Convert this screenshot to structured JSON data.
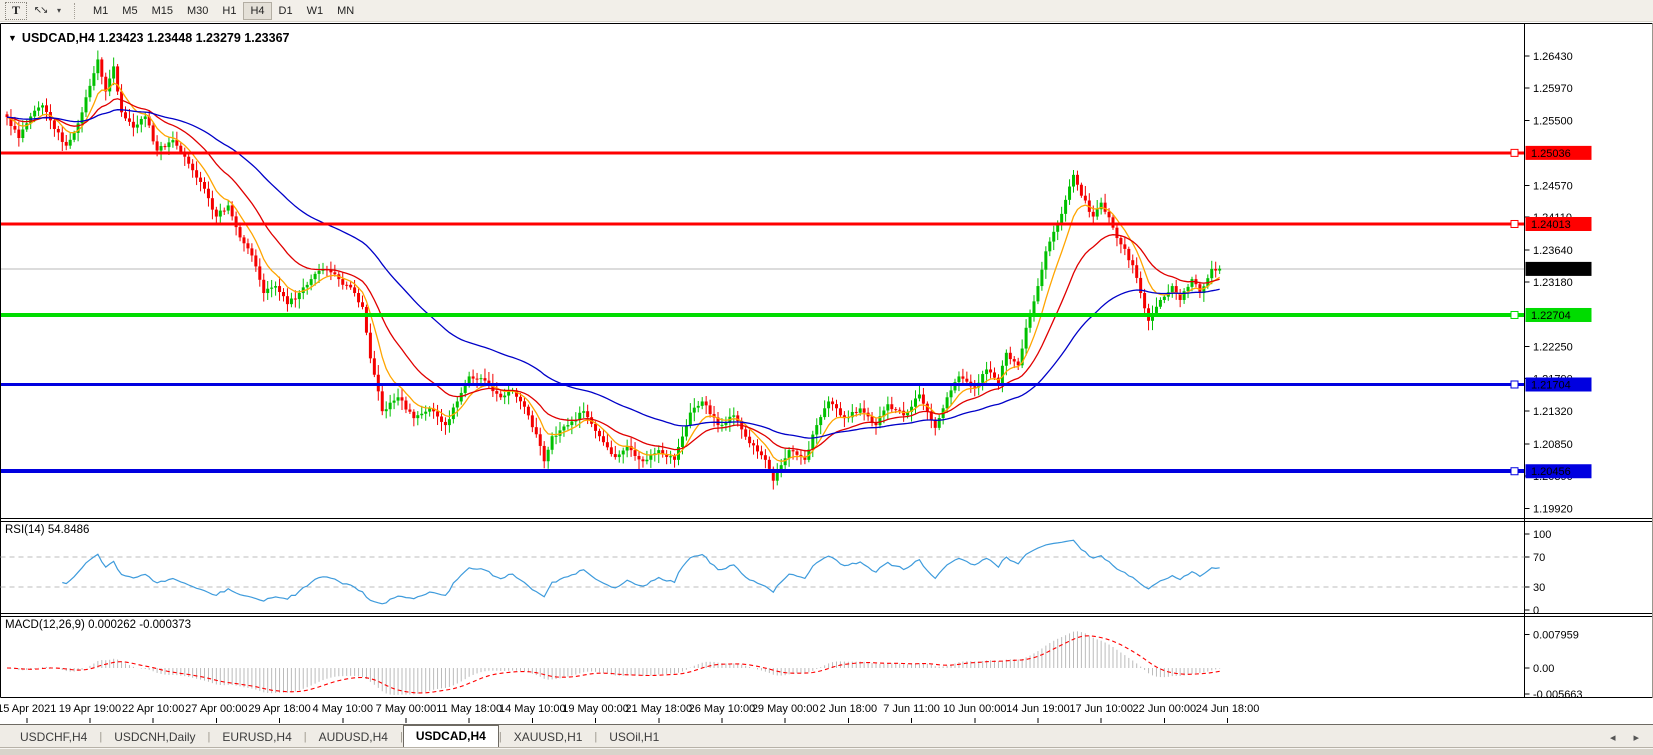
{
  "toolbar": {
    "text_tool_label": "T",
    "arrows_icon": "arrows-cursor",
    "timeframes": [
      "M1",
      "M5",
      "M15",
      "M30",
      "H1",
      "H4",
      "D1",
      "W1",
      "MN"
    ],
    "active_timeframe": "H4"
  },
  "chart": {
    "title": "USDCAD,H4  1.23423 1.23448 1.23279 1.23367",
    "symbol": "USDCAD",
    "period": "H4",
    "ohlc": {
      "open": "1.23423",
      "high": "1.23448",
      "low": "1.23279",
      "close": "1.23367"
    }
  },
  "price_axis": {
    "ticks": [
      "1.26430",
      "1.25970",
      "1.25500",
      "1.24570",
      "1.24110",
      "1.23640",
      "1.23180",
      "1.22250",
      "1.21790",
      "1.21320",
      "1.20850",
      "1.20390",
      "1.19920"
    ],
    "current_price": "1.23367"
  },
  "levels": [
    {
      "price": 1.25036,
      "label": "1.25036",
      "color": "#ff0000",
      "width": 3,
      "kind": "resistance"
    },
    {
      "price": 1.24013,
      "label": "1.24013",
      "color": "#ff0000",
      "width": 3,
      "kind": "resistance"
    },
    {
      "price": 1.23367,
      "label": "1.23367",
      "color": "#b8b8b8",
      "width": 1,
      "label_bg": "#000000",
      "kind": "current-price"
    },
    {
      "price": 1.22704,
      "label": "1.22704",
      "color": "#00dc00",
      "width": 4,
      "kind": "support"
    },
    {
      "price": 1.21704,
      "label": "1.21704",
      "color": "#0000e0",
      "width": 3,
      "kind": "support"
    },
    {
      "price": 1.20456,
      "label": "1.20456",
      "color": "#0000e0",
      "width": 4,
      "kind": "support"
    }
  ],
  "chart_data": {
    "type": "candlestick",
    "title": "USDCAD,H4",
    "symbol": "USDCAD",
    "timeframe": "H4",
    "ylim": [
      1.19805,
      1.2689
    ],
    "n_candles": 308,
    "x_labels": [
      "15 Apr 2021",
      "19 Apr 19:00",
      "22 Apr 10:00",
      "27 Apr 00:00",
      "29 Apr 18:00",
      "4 May 10:00",
      "7 May 00:00",
      "11 May 18:00",
      "14 May 10:00",
      "19 May 00:00",
      "21 May 18:00",
      "26 May 10:00",
      "29 May 00:00",
      "2 Jun 18:00",
      "7 Jun 11:00",
      "10 Jun 00:00",
      "14 Jun 19:00",
      "17 Jun 10:00",
      "22 Jun 00:00",
      "24 Jun 18:00"
    ],
    "x_label_start_index": 5,
    "x_label_every": 16,
    "close_keypoints": [
      [
        0,
        1.2555
      ],
      [
        3,
        1.2525
      ],
      [
        6,
        1.2556
      ],
      [
        9,
        1.2572
      ],
      [
        12,
        1.2538
      ],
      [
        15,
        1.2514
      ],
      [
        18,
        1.2546
      ],
      [
        21,
        1.26
      ],
      [
        23,
        1.2638
      ],
      [
        25,
        1.2592
      ],
      [
        27,
        1.2628
      ],
      [
        29,
        1.2562
      ],
      [
        32,
        1.254
      ],
      [
        35,
        1.2556
      ],
      [
        38,
        1.2507
      ],
      [
        42,
        1.2522
      ],
      [
        46,
        1.2488
      ],
      [
        50,
        1.2452
      ],
      [
        53,
        1.2412
      ],
      [
        56,
        1.2428
      ],
      [
        59,
        1.2382
      ],
      [
        62,
        1.2356
      ],
      [
        65,
        1.2302
      ],
      [
        68,
        1.2312
      ],
      [
        71,
        1.2286
      ],
      [
        74,
        1.2302
      ],
      [
        77,
        1.2322
      ],
      [
        80,
        1.2336
      ],
      [
        84,
        1.2322
      ],
      [
        88,
        1.2302
      ],
      [
        90,
        1.2282
      ],
      [
        92,
        1.2208
      ],
      [
        95,
        1.2132
      ],
      [
        99,
        1.2152
      ],
      [
        103,
        1.2122
      ],
      [
        107,
        1.2136
      ],
      [
        111,
        1.2112
      ],
      [
        114,
        1.2146
      ],
      [
        117,
        1.2182
      ],
      [
        121,
        1.2176
      ],
      [
        125,
        1.2152
      ],
      [
        128,
        1.2162
      ],
      [
        132,
        1.2126
      ],
      [
        135,
        1.2082
      ],
      [
        136,
        1.206
      ],
      [
        138,
        1.2096
      ],
      [
        142,
        1.2112
      ],
      [
        146,
        1.2132
      ],
      [
        150,
        1.2096
      ],
      [
        154,
        1.2066
      ],
      [
        157,
        1.2082
      ],
      [
        161,
        1.206
      ],
      [
        165,
        1.2076
      ],
      [
        169,
        1.2062
      ],
      [
        173,
        1.213
      ],
      [
        176,
        1.2146
      ],
      [
        180,
        1.2112
      ],
      [
        184,
        1.2126
      ],
      [
        188,
        1.2086
      ],
      [
        192,
        1.2062
      ],
      [
        194,
        1.2032
      ],
      [
        198,
        1.2076
      ],
      [
        202,
        1.2062
      ],
      [
        205,
        1.2112
      ],
      [
        208,
        1.2146
      ],
      [
        212,
        1.2122
      ],
      [
        216,
        1.2136
      ],
      [
        220,
        1.2112
      ],
      [
        223,
        1.2142
      ],
      [
        227,
        1.2126
      ],
      [
        231,
        1.2156
      ],
      [
        235,
        1.2108
      ],
      [
        238,
        1.2152
      ],
      [
        241,
        1.2182
      ],
      [
        245,
        1.2166
      ],
      [
        248,
        1.2192
      ],
      [
        251,
        1.2172
      ],
      [
        253,
        1.2216
      ],
      [
        256,
        1.2198
      ],
      [
        258,
        1.2252
      ],
      [
        261,
        1.2312
      ],
      [
        263,
        1.2362
      ],
      [
        266,
        1.2402
      ],
      [
        268,
        1.2436
      ],
      [
        270,
        1.2472
      ],
      [
        272,
        1.2442
      ],
      [
        275,
        1.2412
      ],
      [
        277,
        1.2432
      ],
      [
        280,
        1.2396
      ],
      [
        282,
        1.2372
      ],
      [
        285,
        1.2342
      ],
      [
        287,
        1.2302
      ],
      [
        289,
        1.2262
      ],
      [
        292,
        1.2292
      ],
      [
        295,
        1.2312
      ],
      [
        297,
        1.2292
      ],
      [
        300,
        1.2322
      ],
      [
        302,
        1.2302
      ],
      [
        305,
        1.23367
      ],
      [
        307,
        1.2337
      ]
    ],
    "moving_averages": [
      {
        "name": "fast",
        "period": 8,
        "color": "#ffa500"
      },
      {
        "name": "medium",
        "period": 21,
        "color": "#e00000"
      },
      {
        "name": "slow",
        "period": 55,
        "color": "#0000c8"
      }
    ],
    "colors": {
      "bull": "#00c000",
      "bear": "#f40000",
      "grid_dash": "#bcbcbc"
    },
    "indicators": {
      "rsi": {
        "label": "RSI(14) 54.8486",
        "period": 14,
        "value": 54.8486,
        "axis_ticks": [
          "100",
          "70",
          "30",
          "0"
        ],
        "guide_levels": [
          70,
          30
        ],
        "color": "#3e9bdc"
      },
      "macd": {
        "label": "MACD(12,26,9) 0.000262 -0.000373",
        "params": [
          12,
          26,
          9
        ],
        "value": 0.000262,
        "signal": -0.000373,
        "axis_ticks": [
          "0.007959",
          "0.00",
          "-0.005663"
        ],
        "hist_color": "#bbbbbb",
        "signal_color": "#ff0000"
      }
    },
    "legend_position": "none",
    "grid": "off"
  },
  "tabs": {
    "items": [
      "USDCHF,H4",
      "USDCNH,Daily",
      "EURUSD,H4",
      "AUDUSD,H4",
      "USDCAD,H4",
      "XAUUSD,H1",
      "USOil,H1"
    ],
    "active": "USDCAD,H4"
  },
  "tab_scroll": {
    "left": "◂",
    "right": "▸"
  }
}
